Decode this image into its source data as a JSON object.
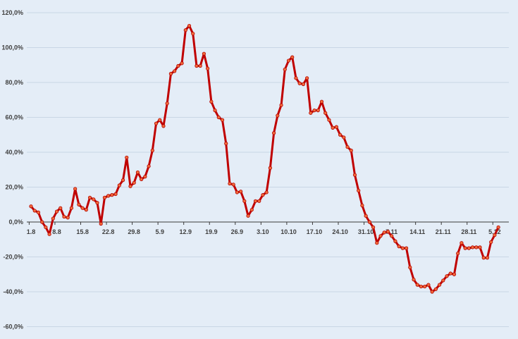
{
  "chart_data": {
    "type": "line",
    "title": "",
    "xlabel": "",
    "ylabel": "",
    "ylim": [
      -60,
      120
    ],
    "y_ticks": [
      -60,
      -40,
      -20,
      0,
      20,
      40,
      60,
      80,
      100,
      120
    ],
    "y_tick_labels": [
      "-60,0%",
      "-40,0%",
      "-20,0%",
      "0,0%",
      "20,0%",
      "40,0%",
      "60,0%",
      "80,0%",
      "100,0%",
      "120,0%"
    ],
    "x_tick_labels": [
      "1.8",
      "8.8",
      "15.8",
      "22.8",
      "29.8",
      "5.9",
      "12.9",
      "19.9",
      "26.9",
      "3.10",
      "10.10",
      "17.10",
      "24.10",
      "31.10",
      "7.11",
      "14.11",
      "21.11",
      "28.11",
      "5.12"
    ],
    "grid": true,
    "legend": "none",
    "colors": {
      "background": "#e4edf7",
      "grid": "#c9d6e5",
      "line": "#c00000",
      "marker_fill": "#f26b3a",
      "marker_stroke": "#b00000",
      "tick_text": "#404040"
    },
    "series": [
      {
        "values": [
          9,
          6.5,
          5.5,
          0,
          -3,
          -7,
          2,
          6,
          8,
          3,
          2.5,
          8,
          19,
          10,
          8,
          7,
          14,
          13,
          11,
          -1,
          14,
          15,
          15.5,
          16,
          21,
          24,
          37,
          20.5,
          22.5,
          28.5,
          24.5,
          26,
          32,
          41,
          56.5,
          58.5,
          55,
          68,
          85,
          86.5,
          89.5,
          91,
          110,
          112.5,
          108,
          89.5,
          89.5,
          96.5,
          88,
          69,
          64,
          60,
          58.5,
          45,
          22,
          21.5,
          17,
          17.5,
          12,
          3.5,
          7,
          12,
          12,
          15.5,
          17,
          31,
          51,
          61,
          67,
          87.5,
          92.5,
          94.5,
          82.5,
          79.5,
          79,
          82.5,
          62.5,
          64,
          64,
          69,
          62.5,
          58.5,
          54,
          54.5,
          50,
          48.5,
          43,
          41,
          27,
          18,
          9.5,
          3.5,
          0,
          -3,
          -12,
          -8,
          -6,
          -5.5,
          -8,
          -11,
          -14,
          -15,
          -15,
          -26,
          -33,
          -36,
          -37,
          -37,
          -36,
          -40,
          -38.5,
          -36,
          -33.5,
          -31,
          -29.5,
          -30,
          -18,
          -12,
          -15,
          -15,
          -14.5,
          -14.5,
          -14.5,
          -20.5,
          -20.5,
          -11.5,
          -7.5,
          -3
        ]
      }
    ]
  }
}
